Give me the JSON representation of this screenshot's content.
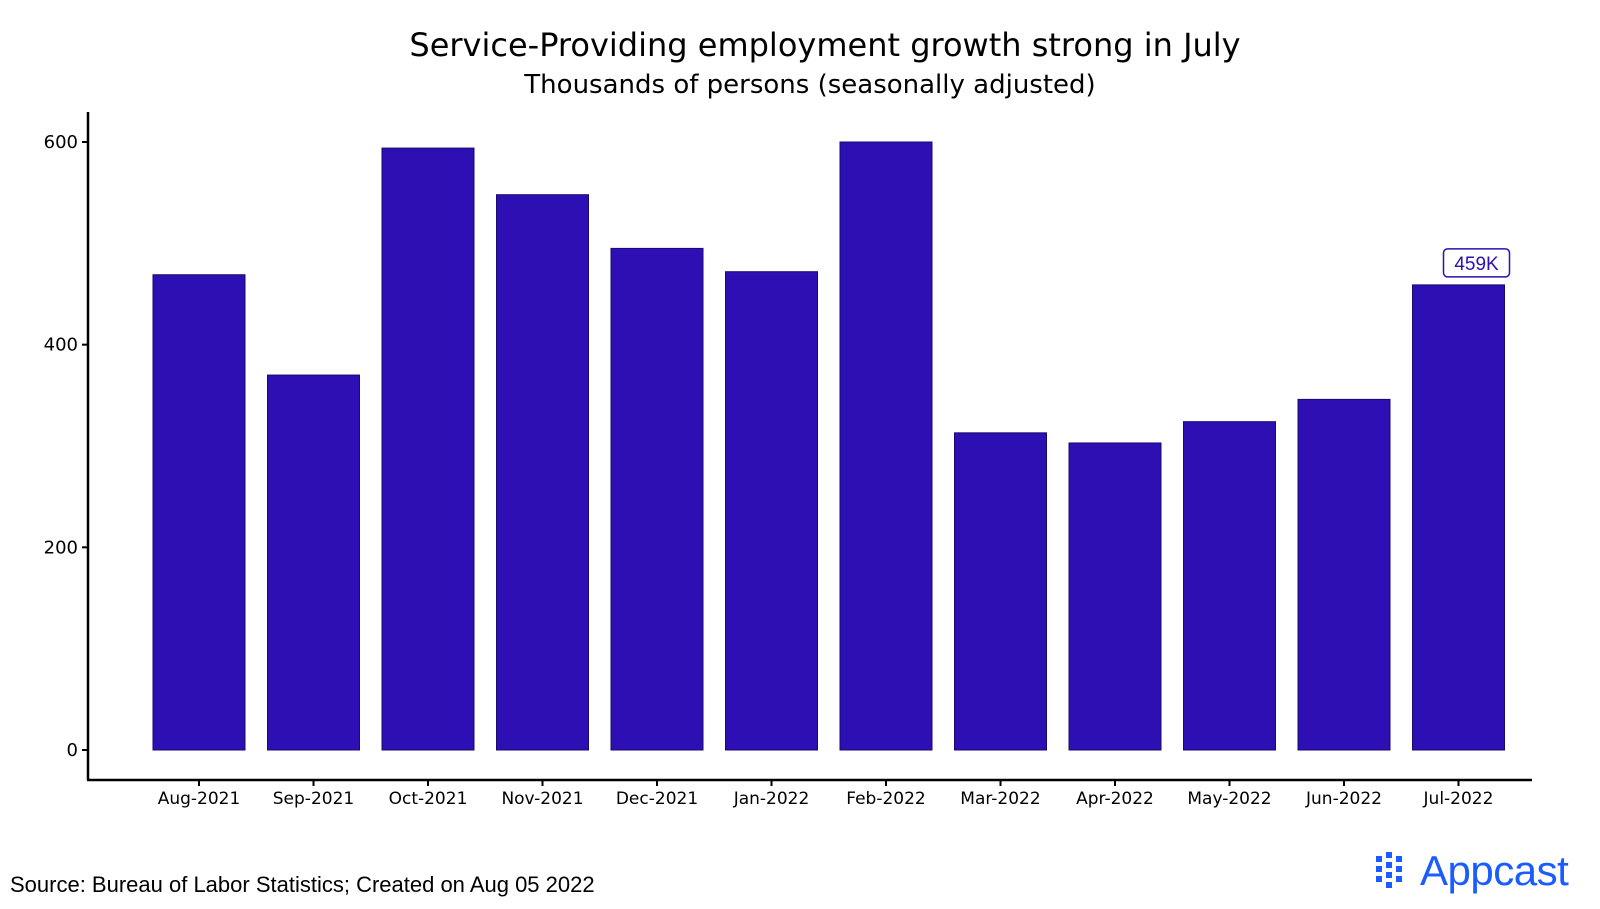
{
  "chart_data": {
    "type": "bar",
    "title": "Service-Providing employment growth strong in July",
    "subtitle": "Thousands of persons (seasonally adjusted)",
    "categories": [
      "Aug-2021",
      "Sep-2021",
      "Oct-2021",
      "Nov-2021",
      "Dec-2021",
      "Jan-2022",
      "Feb-2022",
      "Mar-2022",
      "Apr-2022",
      "May-2022",
      "Jun-2022",
      "Jul-2022"
    ],
    "values": [
      469,
      370,
      594,
      548,
      495,
      472,
      600,
      313,
      303,
      324,
      346,
      459
    ],
    "ylim": [
      0,
      600
    ],
    "yticks": [
      0,
      200,
      400,
      600
    ],
    "bar_color": "#2e0fb3",
    "annotation": {
      "category": "Jul-2022",
      "label": "459K",
      "color": "#2e0fb3"
    },
    "grid": false,
    "legend": "none"
  },
  "footer": {
    "source": "Source: Bureau of Labor Statistics; Created on Aug 05 2022",
    "brand": "Appcast",
    "brand_color": "#1a5cff"
  }
}
